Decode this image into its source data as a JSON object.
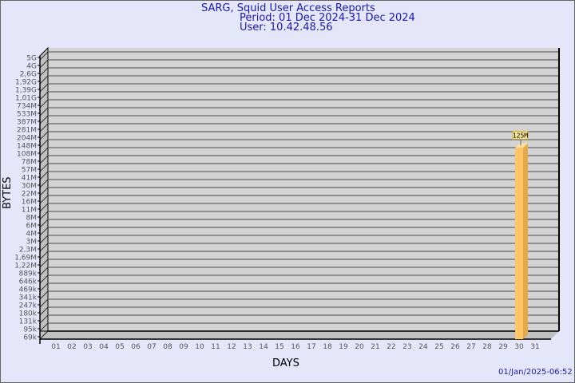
{
  "chart_data": {
    "type": "bar",
    "title": "SARG, Squid User Access Reports",
    "subtitle": [
      "Period: 01 Dec 2024-31 Dec 2024",
      "User: 10.42.48.56"
    ],
    "xlabel": "DAYS",
    "ylabel": "BYTES",
    "y_scale": "log",
    "y_tick_labels": [
      "5G",
      "4G",
      "2,6G",
      "1,92G",
      "1,39G",
      "1,01G",
      "734M",
      "533M",
      "387M",
      "281M",
      "204M",
      "148M",
      "108M",
      "78M",
      "57M",
      "41M",
      "30M",
      "22M",
      "16M",
      "11M",
      "8M",
      "6M",
      "4M",
      "3M",
      "2,3M",
      "1,69M",
      "1,22M",
      "889k",
      "646k",
      "469k",
      "341k",
      "247k",
      "180k",
      "131k",
      "95k",
      "69k"
    ],
    "categories": [
      "01",
      "02",
      "03",
      "04",
      "05",
      "06",
      "07",
      "08",
      "09",
      "10",
      "11",
      "12",
      "13",
      "14",
      "15",
      "16",
      "17",
      "18",
      "19",
      "20",
      "21",
      "22",
      "23",
      "24",
      "25",
      "26",
      "27",
      "28",
      "29",
      "30",
      "31"
    ],
    "bars": [
      {
        "day": "30",
        "value": "125M"
      }
    ],
    "grid": true,
    "bar_color": "#ffc466",
    "timestamp": "01/Jan/2025-06:52"
  }
}
